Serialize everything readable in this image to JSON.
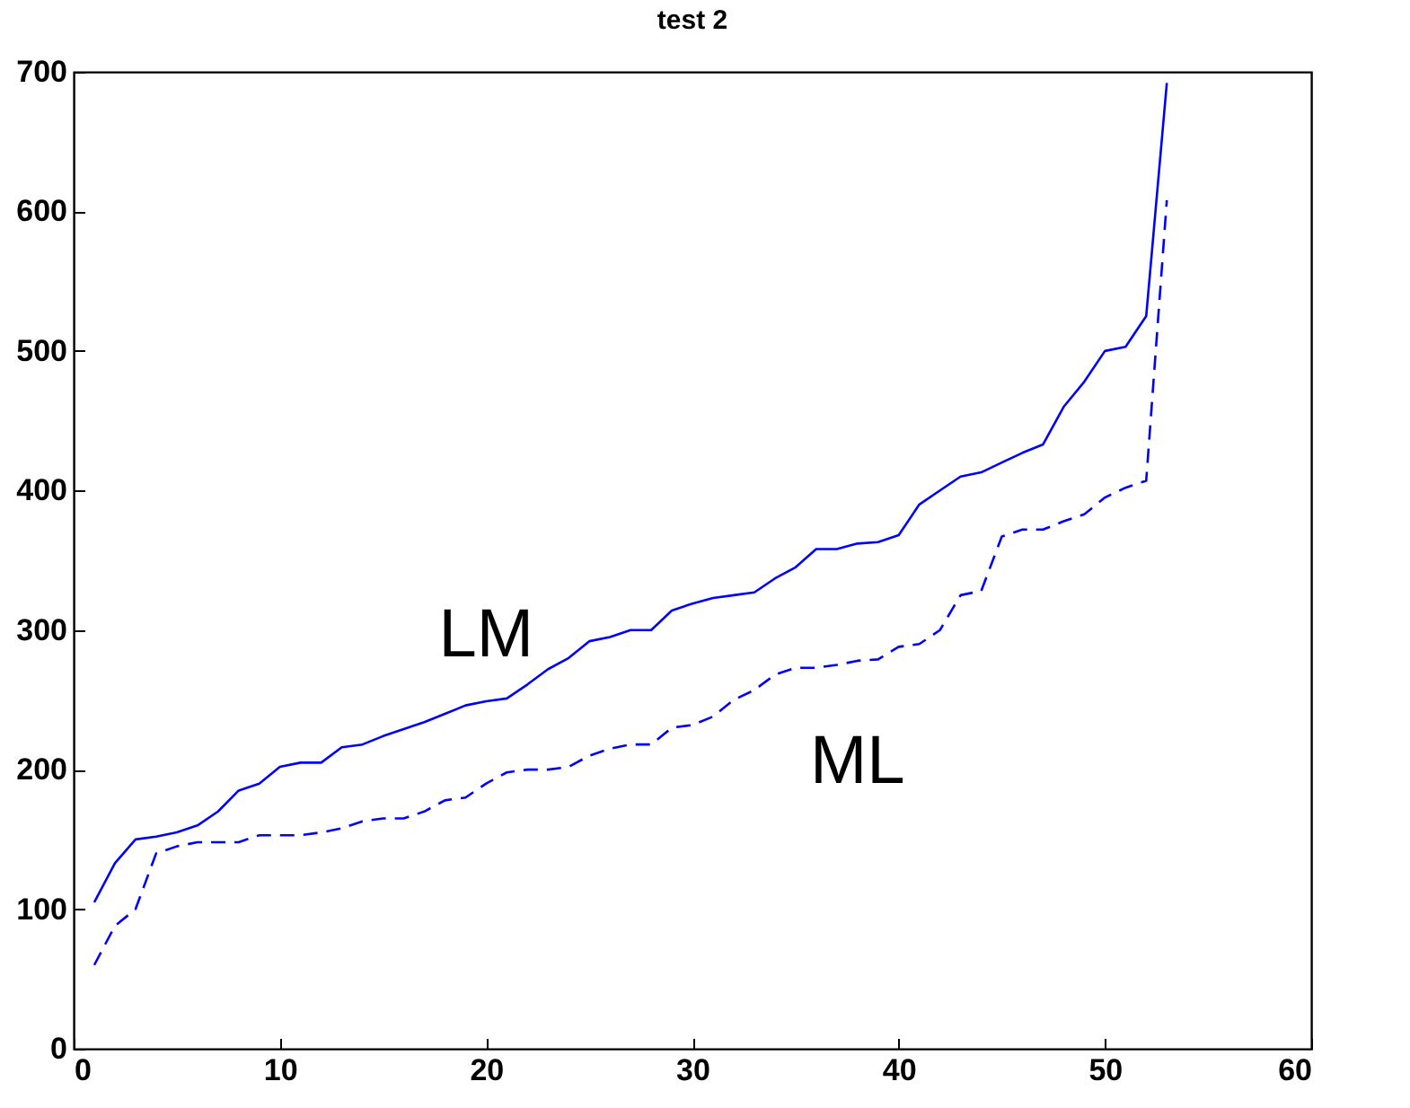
{
  "chart_data": {
    "type": "line",
    "title": "test 2",
    "x": [
      1,
      2,
      3,
      4,
      5,
      6,
      7,
      8,
      9,
      10,
      11,
      12,
      13,
      14,
      15,
      16,
      17,
      18,
      19,
      20,
      21,
      22,
      23,
      24,
      25,
      26,
      27,
      28,
      29,
      30,
      31,
      32,
      33,
      34,
      35,
      36,
      37,
      38,
      39,
      40,
      41,
      42,
      43,
      44,
      45,
      46,
      47,
      48,
      49,
      50,
      51,
      52,
      53
    ],
    "series": [
      {
        "name": "LM",
        "color": "#0000ff",
        "line_style": "solid",
        "values": [
          105,
          133,
          150,
          152,
          155,
          160,
          170,
          185,
          190,
          202,
          205,
          205,
          216,
          218,
          224,
          229,
          234,
          240,
          246,
          249,
          251,
          261,
          272,
          280,
          292,
          295,
          300,
          300,
          314,
          319,
          323,
          325,
          327,
          337,
          345,
          358,
          358,
          362,
          363,
          368,
          390,
          400,
          410,
          413,
          420,
          427,
          433,
          460,
          478,
          500,
          503,
          525,
          692
        ]
      },
      {
        "name": "ML",
        "color": "#0000ff",
        "line_style": "dashed",
        "values": [
          60,
          88,
          100,
          140,
          145,
          148,
          148,
          148,
          153,
          153,
          153,
          155,
          158,
          163,
          165,
          165,
          170,
          178,
          180,
          190,
          198,
          200,
          200,
          202,
          210,
          215,
          218,
          218,
          230,
          232,
          238,
          250,
          257,
          268,
          273,
          273,
          275,
          278,
          279,
          288,
          290,
          300,
          325,
          328,
          367,
          372,
          372,
          378,
          383,
          395,
          402,
          407,
          608
        ]
      }
    ],
    "xlim": [
      0,
      60
    ],
    "xticks": [
      0,
      10,
      20,
      30,
      40,
      50,
      60
    ],
    "ylim": [
      0,
      700
    ],
    "yticks": [
      0,
      100,
      200,
      300,
      400,
      500,
      600,
      700
    ],
    "grid": false,
    "marker": "none"
  }
}
